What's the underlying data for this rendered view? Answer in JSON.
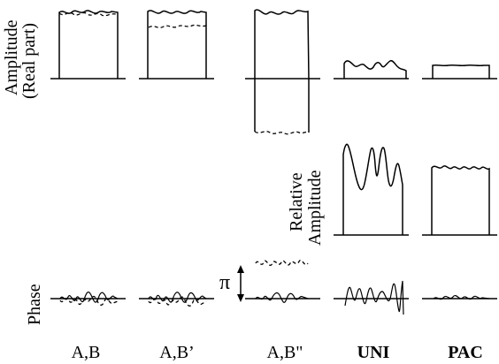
{
  "labels": {
    "amplitude_line1": "Amplitude",
    "amplitude_line2": "(Real part)",
    "relative_line1": "Relative",
    "relative_line2": "Amplitude",
    "phase": "Phase",
    "pi": "π"
  },
  "columns": [
    "A,B",
    "A,B’",
    "A,B\"",
    "UNI",
    "PAC"
  ]
}
